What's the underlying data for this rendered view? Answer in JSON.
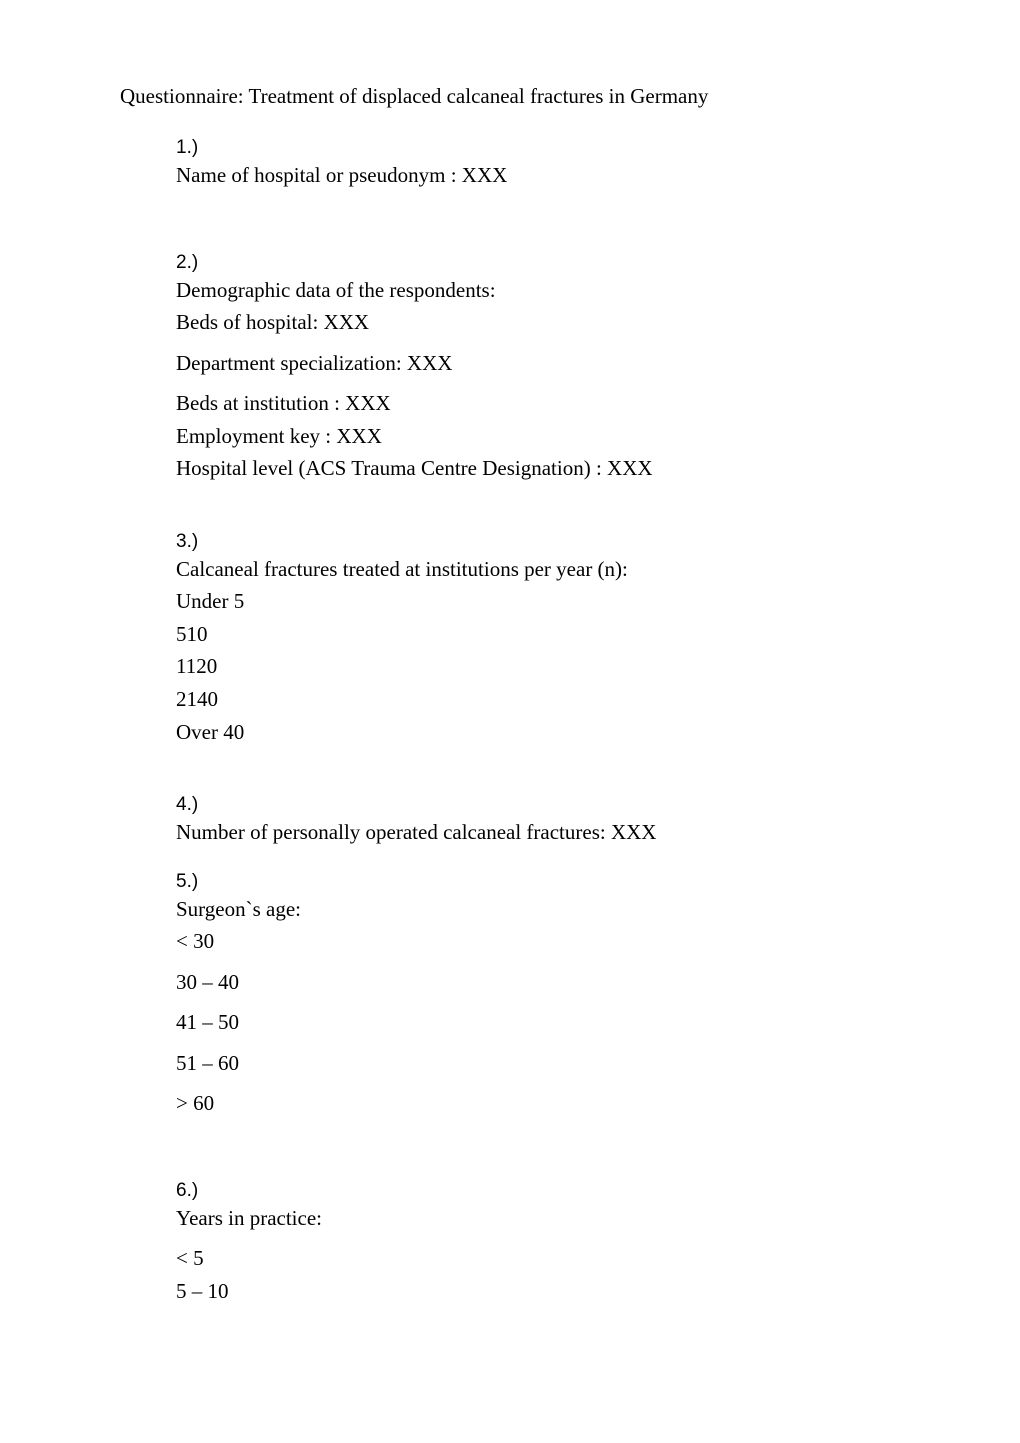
{
  "title": "Questionnaire: Treatment of displaced calcaneal fractures in Germany",
  "q1": {
    "num": "1.)",
    "text": "Name of hospital or pseudonym : XXX"
  },
  "q2": {
    "num": "2.)",
    "intro": " Demographic data of the respondents:",
    "lines": {
      "a": "Beds of hospital: XXX",
      "b": "Department specialization: XXX",
      "c": "Beds at institution : XXX",
      "d": "Employment key : XXX",
      "e": "Hospital level (ACS Trauma Centre Designation) : XXX"
    }
  },
  "q3": {
    "num": "3.)",
    "intro": " Calcaneal fractures treated at institutions per year (n):",
    "options": {
      "a": "Under 5",
      "b": "510",
      "c": "1120",
      "d": "2140",
      "e": "Over 40"
    }
  },
  "q4": {
    "num": "4.)",
    "text": "Number of personally operated calcaneal fractures: XXX"
  },
  "q5": {
    "num": "5.)",
    "intro": "Surgeon`s age:",
    "options": {
      "a": "< 30",
      "b": "30 – 40",
      "c": "41 – 50",
      "d": "51 – 60",
      "e": "> 60"
    }
  },
  "q6": {
    "num": "6.)",
    "intro": "Years in practice:",
    "options": {
      "a": "< 5",
      "b": "5 – 10"
    }
  }
}
